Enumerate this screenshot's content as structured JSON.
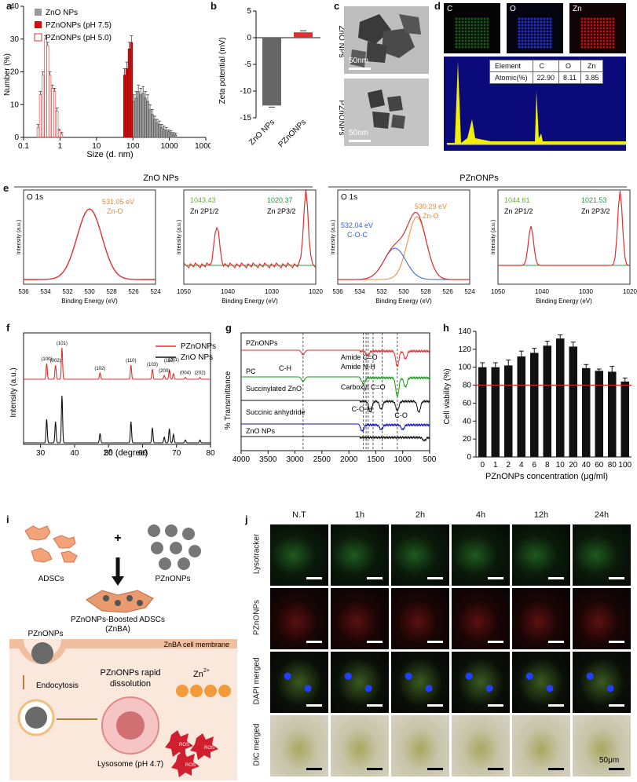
{
  "panel_letters": [
    "a",
    "b",
    "c",
    "d",
    "e",
    "f",
    "g",
    "h",
    "i",
    "j"
  ],
  "colors": {
    "zno": "#9a9a9a",
    "pzno75": "#d01010",
    "pzno50": "#e03030",
    "fit_red": "#e03030",
    "green_bg": "#3a9a3a",
    "c_o_c": "#3060e0",
    "zn_o": "#f08a30",
    "green_label": "#6ab030",
    "eds_yellow": "#f0f000",
    "eds_bg": "#00008a",
    "ir_green": "#1a9a1a",
    "ir_blue": "#1010c0"
  },
  "chart_data": [
    {
      "id": "a",
      "type": "bar",
      "xlabel": "Size (d. nm)",
      "ylabel": "Number (%)",
      "xscale": "log",
      "xlim": [
        0.1,
        10000
      ],
      "ylim": [
        0,
        40
      ],
      "xticks": [
        "0.1",
        "1",
        "10",
        "100",
        "1000",
        "10000"
      ],
      "yticks": [
        "0",
        "10",
        "20",
        "30",
        "40"
      ],
      "legend": [
        "ZnO NPs",
        "PZnONPs (pH 7.5)",
        "PZnONPs (pH 5.0)"
      ],
      "legend_position": "top-left",
      "series": [
        {
          "name": "ZnO NPs",
          "x": [
            91,
            106,
            122,
            141,
            164,
            190,
            220,
            255,
            295,
            342,
            396,
            459,
            531,
            615,
            712,
            825,
            955,
            1106,
            1281,
            1484
          ],
          "values": [
            5,
            11,
            12,
            14,
            13,
            13.5,
            12,
            11,
            8.5,
            7,
            5.5,
            4.5,
            4,
            3,
            2.5,
            2,
            1.8,
            1.5,
            1,
            0.8
          ],
          "errors": [
            1,
            2,
            2,
            2,
            2,
            2,
            2,
            2,
            1.5,
            1.5,
            1,
            1,
            1,
            1,
            1,
            1,
            0.5,
            0.5,
            0.5,
            0.5
          ]
        },
        {
          "name": "PZnONPs (pH 7.5)",
          "x": [
            59,
            68,
            79,
            91
          ],
          "values": [
            19,
            21,
            27,
            29
          ],
          "errors": [
            2,
            2,
            2,
            2
          ]
        },
        {
          "name": "PZnONPs (pH 5.0)",
          "x": [
            0.25,
            0.29,
            0.34,
            0.4,
            0.46,
            0.53,
            0.62,
            0.71,
            0.83,
            0.96,
            1.11
          ],
          "values": [
            3,
            13,
            19,
            30,
            28,
            19,
            15,
            14,
            8,
            2,
            1
          ],
          "errors": [
            1,
            1,
            1,
            1,
            1,
            1,
            1,
            1,
            1,
            0.5,
            0.5
          ]
        }
      ]
    },
    {
      "id": "b",
      "type": "bar",
      "ylabel": "Zeta potential (mV)",
      "categories": [
        "ZnO NPs",
        "PZnONPs"
      ],
      "values": [
        -12.7,
        1
      ],
      "errors": [
        0.3,
        0.3
      ],
      "ylim": [
        -15,
        5
      ],
      "yticks": [
        "5",
        "0",
        "-5",
        "-10",
        "-15"
      ]
    },
    {
      "id": "f",
      "type": "line",
      "xlabel": "2θ (degree)",
      "ylabel": "Intensity (a.u.)",
      "xlim": [
        25,
        80
      ],
      "xticks": [
        "30",
        "40",
        "50",
        "60",
        "70",
        "80"
      ],
      "legend": [
        "PZnONPs",
        "ZnO NPs"
      ],
      "legend_position": "top-right",
      "peak_labels": [
        "(100)",
        "(002)",
        "(101)",
        "(102)",
        "(110)",
        "(103)",
        "(200)",
        "(112)",
        "(201)",
        "(004)",
        "(202)"
      ],
      "peaks_2theta": [
        31.8,
        34.4,
        36.3,
        47.5,
        56.6,
        62.9,
        66.4,
        67.9,
        69.1,
        72.6,
        76.9
      ]
    },
    {
      "id": "g",
      "type": "line",
      "xlabel": "Wavenumber (cm-1)",
      "ylabel": "% Transmittance",
      "xlim": [
        4000,
        500
      ],
      "xticks": [
        "4000",
        "3500",
        "3000",
        "2500",
        "2000",
        "1500",
        "1000",
        "500"
      ],
      "series_labels": [
        "PZnONPs",
        "PC",
        "Succinylated ZnO",
        "Succinic anhydride",
        "ZnO NPs"
      ],
      "annotations": [
        "C-H",
        "Amide C=O",
        "Amide N-H",
        "Carboxyl C=O",
        "C-O-H",
        "C-O"
      ]
    },
    {
      "id": "h",
      "type": "bar",
      "xlabel": "PZnONPs concentration (μg/ml)",
      "ylabel": "Cell viability (%)",
      "categories": [
        "0",
        "1",
        "2",
        "4",
        "6",
        "8",
        "10",
        "20",
        "40",
        "60",
        "80",
        "100"
      ],
      "values": [
        100,
        100,
        102,
        112,
        116,
        124,
        132,
        123,
        99,
        96,
        95,
        84
      ],
      "errors": [
        5,
        5,
        6,
        6,
        5,
        5,
        4,
        5,
        4,
        2,
        6,
        4
      ],
      "ylim": [
        0,
        140
      ],
      "yticks": [
        "0",
        "20",
        "40",
        "60",
        "80",
        "100",
        "120",
        "140"
      ],
      "reference_line": 80
    }
  ],
  "c": {
    "labels": [
      "ZnO NPs",
      "PZnONPs"
    ],
    "scale": "50nm"
  },
  "d": {
    "maps": [
      "C",
      "O",
      "Zn"
    ],
    "table": {
      "header": [
        "Element",
        "C",
        "O",
        "Zn"
      ],
      "row": [
        "Atomic(%)",
        "22.90",
        "8.11",
        "3.85"
      ]
    }
  },
  "e": {
    "groups": [
      "ZnO NPs",
      "PZnONPs"
    ],
    "ylabel": "Intensity (a.u.)",
    "xlabel": "Binding Energy (eV)",
    "panels": [
      {
        "title": "O 1s",
        "peaks": [
          {
            "v": "531.05 eV",
            "n": "Zn-O"
          }
        ],
        "xticks": [
          "536",
          "534",
          "532",
          "530",
          "528",
          "526",
          "524"
        ]
      },
      {
        "title": "",
        "peaks": [
          {
            "v": "1043.43",
            "n": "Zn 2P1/2"
          },
          {
            "v": "1020.37",
            "n": "Zn 2P3/2"
          }
        ],
        "xticks": [
          "1050",
          "1040",
          "1030",
          "1020"
        ]
      },
      {
        "title": "O 1s",
        "peaks": [
          {
            "v": "532.04 eV",
            "n": "C-O-C"
          },
          {
            "v": "530.29 eV",
            "n": "Zn-O"
          }
        ],
        "xticks": [
          "536",
          "534",
          "532",
          "530",
          "528",
          "526",
          "524"
        ]
      },
      {
        "title": "",
        "peaks": [
          {
            "v": "1044.61",
            "n": "Zn 2P1/2"
          },
          {
            "v": "1021.53",
            "n": "Zn 2P3/2"
          }
        ],
        "xticks": [
          "1050",
          "1040",
          "1030",
          "1020"
        ]
      }
    ]
  },
  "i": {
    "adscs": "ADSCs",
    "plus": "+",
    "pzno": "PZnONPs",
    "result": "PZnONPs-Boosted ADSCs",
    "result2": "(ZnBA)",
    "membrane": "ZnBA cell membrane",
    "pzno2": "PZnONPs",
    "endo": "Endocytosis",
    "rapid": "PZnONPs rapid",
    "diss": "dissolution",
    "zn": "Zn",
    "zn_sup": "2+",
    "lyso": "Lysosome (pH 4.7)",
    "ros": "ROS"
  },
  "j": {
    "cols": [
      "N.T",
      "1h",
      "2h",
      "4h",
      "12h",
      "24h"
    ],
    "rows": [
      "Lysotracker",
      "PZnONPs",
      "DAPI merged",
      "DIC merged"
    ],
    "scale": "50μm"
  }
}
